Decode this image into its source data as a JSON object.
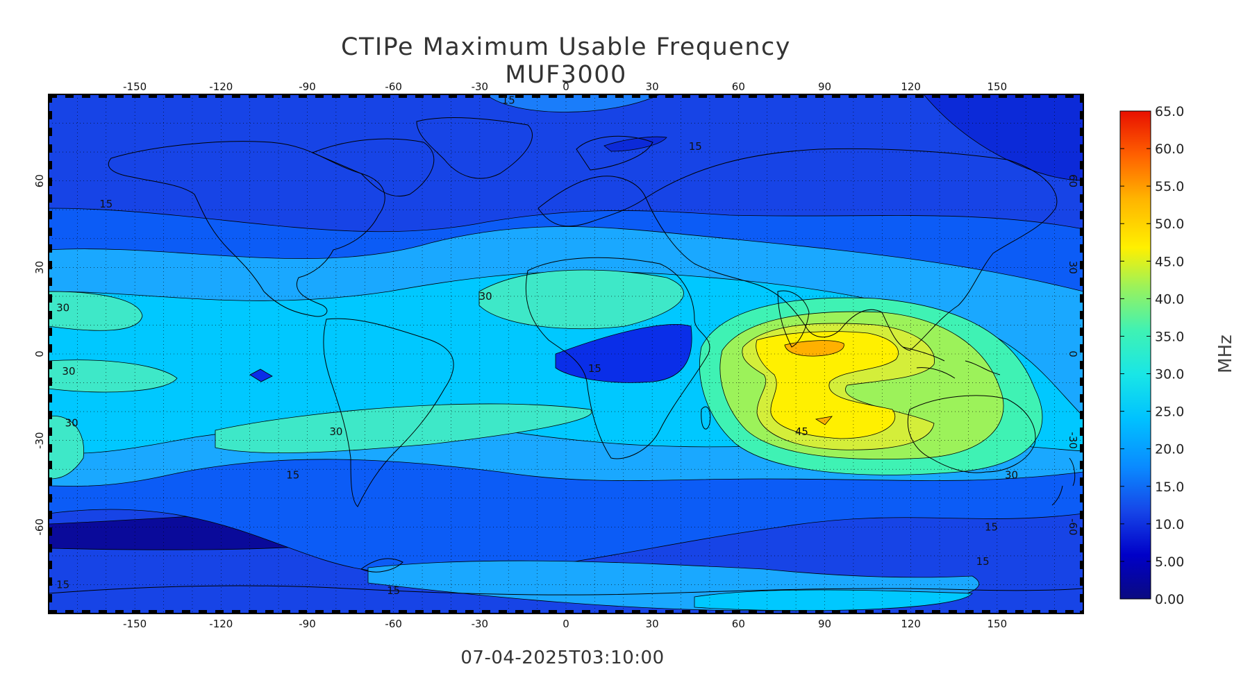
{
  "title": "CTIPe Maximum Usable Frequency MUF3000",
  "timestamp": "07-04-2025T03:10:00",
  "colorbar": {
    "unit": "MHz",
    "min": 0.0,
    "max": 65.0,
    "labels": [
      "65.0",
      "60.0",
      "55.0",
      "50.0",
      "45.0",
      "40.0",
      "35.0",
      "30.0",
      "25.0",
      "20.0",
      "15.0",
      "10.0",
      "5.00",
      "0.00"
    ],
    "ramp_colors": [
      "#0a0a80",
      "#0000c8",
      "#1646e8",
      "#0a8aff",
      "#00c2ff",
      "#19e6e6",
      "#3ff2b4",
      "#9cf25a",
      "#fff000",
      "#ffb400",
      "#ff6000",
      "#e81000"
    ]
  },
  "axes": {
    "lon_ticks": [
      "-150",
      "-120",
      "-90",
      "-60",
      "-30",
      "0",
      "30",
      "60",
      "90",
      "120",
      "150"
    ],
    "lat_ticks": [
      "60",
      "30",
      "0",
      "-30",
      "-60"
    ]
  },
  "map_data": {
    "projection": "cylindrical equidistant",
    "lon_range": [
      -180,
      180
    ],
    "lat_range": [
      -90,
      90
    ],
    "contour_interval_MHz": 5,
    "contour_labels": [
      {
        "text": "15",
        "lon": -160,
        "lat": 52
      },
      {
        "text": "15",
        "lon": -175,
        "lat": -80
      },
      {
        "text": "15",
        "lon": -95,
        "lat": -42
      },
      {
        "text": "15",
        "lon": 10,
        "lat": -5
      },
      {
        "text": "15",
        "lon": -60,
        "lat": -82
      },
      {
        "text": "15",
        "lon": 45,
        "lat": 72
      },
      {
        "text": "15",
        "lon": -20,
        "lat": 88
      },
      {
        "text": "15",
        "lon": 148,
        "lat": -60
      },
      {
        "text": "15",
        "lon": 145,
        "lat": -72
      },
      {
        "text": "30",
        "lon": -175,
        "lat": 16
      },
      {
        "text": "30",
        "lon": -173,
        "lat": -6
      },
      {
        "text": "30",
        "lon": -172,
        "lat": -24
      },
      {
        "text": "30",
        "lon": -80,
        "lat": -27
      },
      {
        "text": "30",
        "lon": -28,
        "lat": 20
      },
      {
        "text": "30",
        "lon": 155,
        "lat": -42
      },
      {
        "text": "45",
        "lon": 82,
        "lat": -27
      }
    ]
  }
}
